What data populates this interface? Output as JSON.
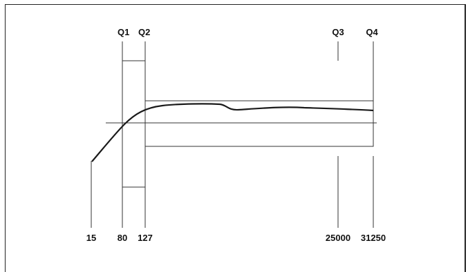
{
  "diagram": {
    "stroke_color": "#333333",
    "curve_color": "#1a1a1a",
    "top_labels": [
      "Q1",
      "Q2",
      "Q3",
      "Q4"
    ],
    "bottom_labels": [
      "15",
      "80",
      "127",
      "25000",
      "31250"
    ]
  }
}
